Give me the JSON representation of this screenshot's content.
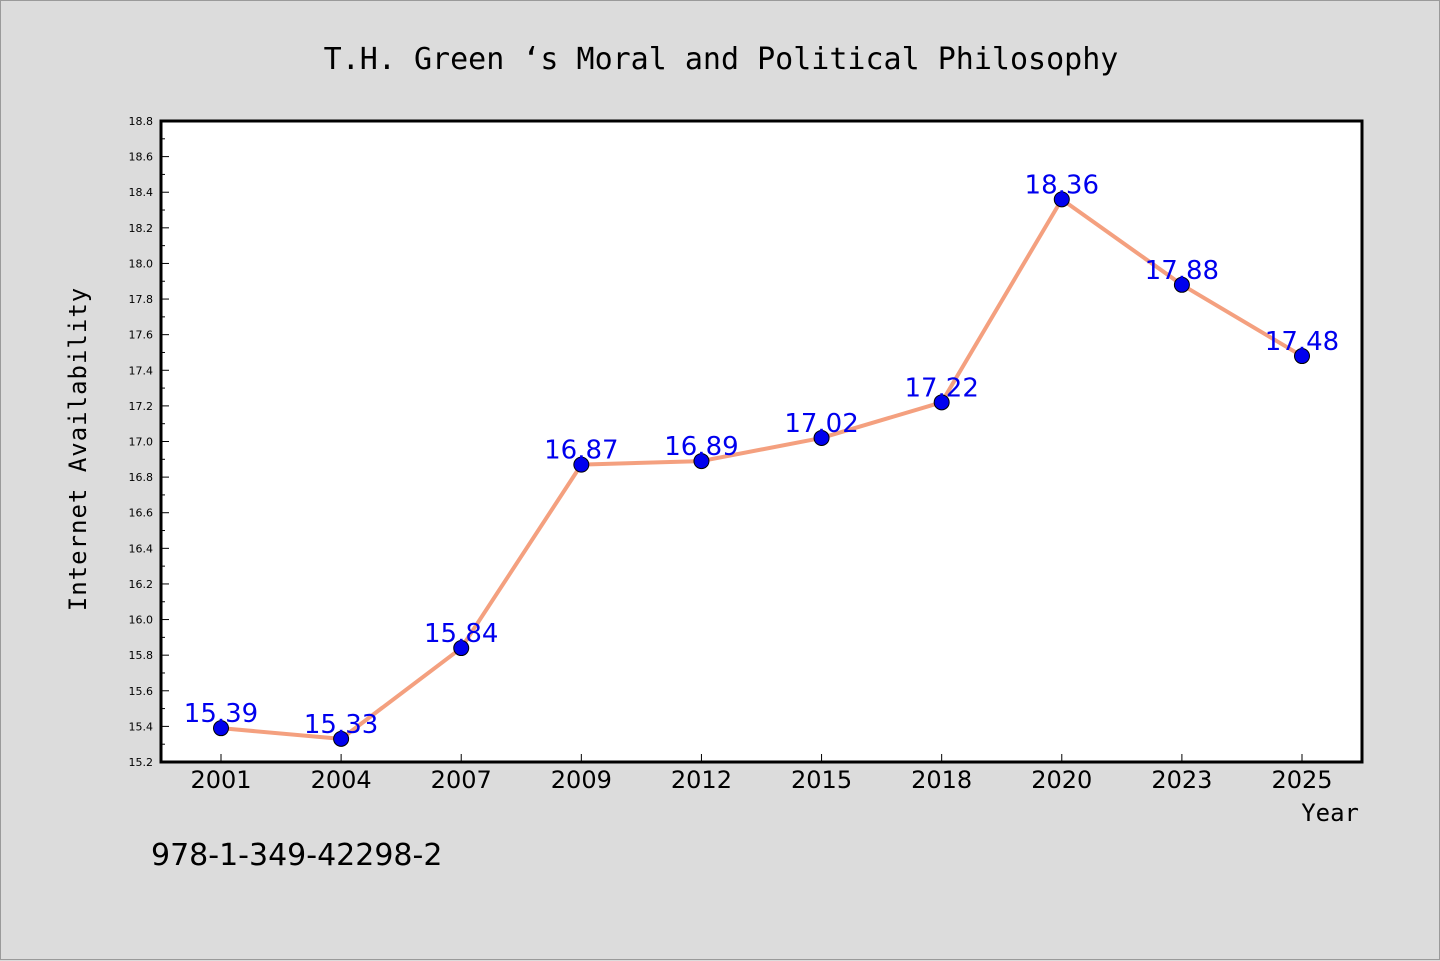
{
  "chart_data": {
    "type": "line",
    "title": "T.H. Green ‘s Moral and Political Philosophy",
    "xlabel": "Year",
    "ylabel": "Internet Availability",
    "categories": [
      "2001",
      "2004",
      "2007",
      "2009",
      "2012",
      "2015",
      "2018",
      "2020",
      "2023",
      "2025"
    ],
    "series": [
      {
        "values": [
          15.39,
          15.33,
          15.84,
          16.87,
          16.89,
          17.02,
          17.22,
          18.36,
          17.88,
          17.48
        ],
        "labels": [
          "15.39",
          "15.33",
          "15.84",
          "16.87",
          "16.89",
          "17.02",
          "17.22",
          "18.36",
          "17.88",
          "17.48"
        ],
        "line_color": "#f4a07f",
        "marker_color": "#0000ee",
        "label_color": "#0000ee"
      }
    ],
    "ylim": [
      15.2,
      18.8
    ],
    "yticks": [
      "15.2",
      "15.4",
      "15.6",
      "15.8",
      "16.0",
      "16.2",
      "16.4",
      "16.6",
      "16.8",
      "17.0",
      "17.2",
      "17.4",
      "17.6",
      "17.8",
      "18.0",
      "18.2",
      "18.4",
      "18.6",
      "18.8"
    ],
    "grid": false,
    "legend": "none"
  },
  "footer": {
    "isbn": "978-1-349-42298-2"
  },
  "colors": {
    "background": "#dcdcdc",
    "plot_background": "#ffffff",
    "axis": "#000000"
  }
}
